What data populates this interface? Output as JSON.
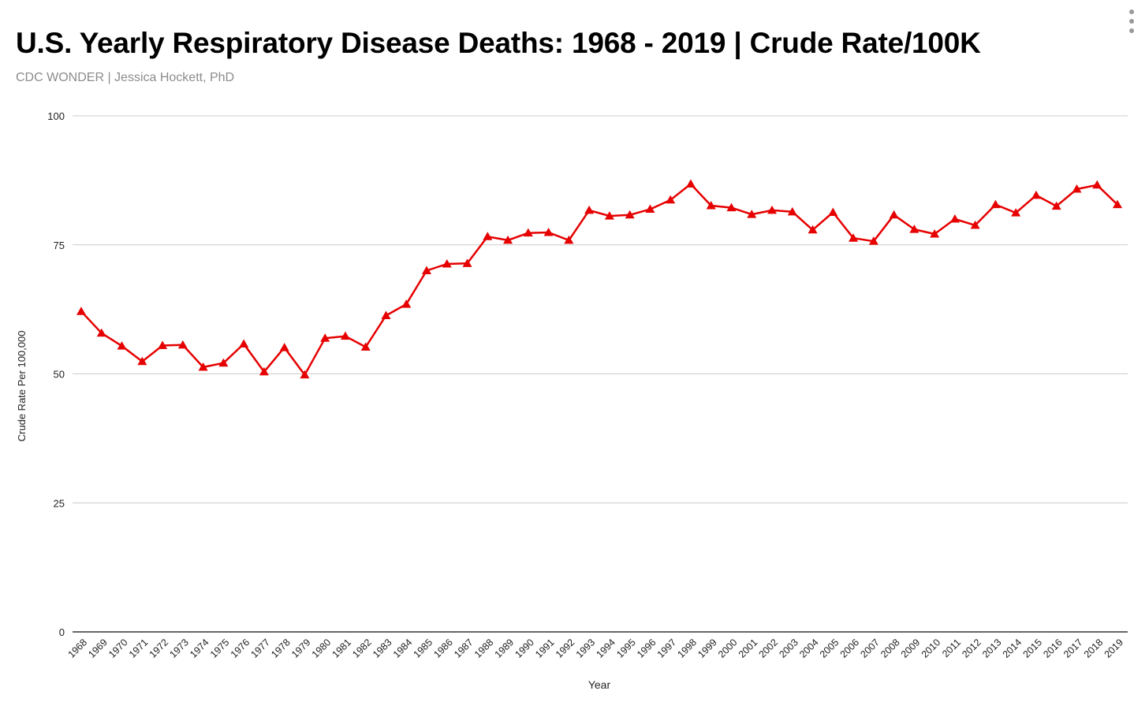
{
  "title": "U.S. Yearly Respiratory Disease Deaths: 1968 - 2019 | Crude Rate/100K",
  "subtitle": "CDC WONDER | Jessica Hockett, PhD",
  "colors": {
    "series": "#e60000",
    "grid": "#cccccc",
    "axis": "#333333",
    "subtitle": "#8c8c8c"
  },
  "menu_icon": "more-vert-icon",
  "chart_data": {
    "type": "line",
    "title": "U.S. Yearly Respiratory Disease Deaths: 1968 - 2019 | Crude Rate/100K",
    "subtitle": "CDC WONDER | Jessica Hockett, PhD",
    "xlabel": "Year",
    "ylabel": "Crude Rate Per 100,000",
    "ylim": [
      0,
      100
    ],
    "yticks": [
      0,
      25,
      50,
      75,
      100
    ],
    "grid": true,
    "legend": "none",
    "marker": "triangle",
    "categories": [
      "1968",
      "1969",
      "1970",
      "1971",
      "1972",
      "1973",
      "1974",
      "1975",
      "1976",
      "1977",
      "1978",
      "1979",
      "1980",
      "1981",
      "1982",
      "1983",
      "1984",
      "1985",
      "1986",
      "1987",
      "1988",
      "1989",
      "1990",
      "1991",
      "1992",
      "1993",
      "1994",
      "1995",
      "1996",
      "1997",
      "1998",
      "1999",
      "2000",
      "2001",
      "2002",
      "2003",
      "2004",
      "2005",
      "2006",
      "2007",
      "2008",
      "2009",
      "2010",
      "2011",
      "2012",
      "2013",
      "2014",
      "2015",
      "2016",
      "2017",
      "2018",
      "2019"
    ],
    "series": [
      {
        "name": "Crude Rate Per 100,000",
        "values": [
          62.1,
          57.9,
          55.4,
          52.4,
          55.5,
          55.6,
          51.3,
          52.1,
          55.8,
          50.4,
          55.1,
          49.8,
          56.9,
          57.3,
          55.2,
          61.3,
          63.5,
          70.0,
          71.3,
          71.4,
          76.6,
          75.9,
          77.3,
          77.4,
          75.9,
          81.7,
          80.6,
          80.8,
          81.9,
          83.7,
          86.8,
          82.6,
          82.2,
          80.9,
          81.7,
          81.4,
          77.9,
          81.3,
          76.3,
          75.7,
          80.8,
          78.0,
          77.1,
          80.0,
          78.8,
          82.8,
          81.2,
          84.6,
          82.5,
          85.8,
          86.6,
          82.8
        ]
      }
    ]
  }
}
